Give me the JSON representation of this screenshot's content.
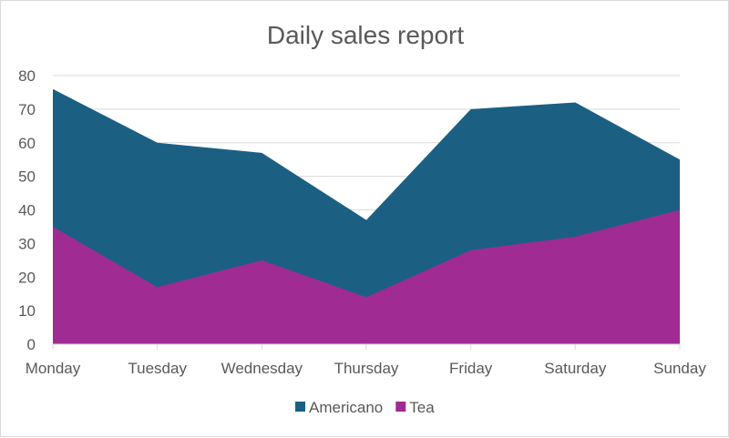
{
  "chart_data": {
    "type": "area",
    "stacked": false,
    "title": "Daily sales report",
    "categories": [
      "Monday",
      "Tuesday",
      "Wednesday",
      "Thursday",
      "Friday",
      "Saturday",
      "Sunday"
    ],
    "series": [
      {
        "name": "Americano",
        "color": "#1B6083",
        "values": [
          76,
          60,
          57,
          37,
          70,
          72,
          55
        ]
      },
      {
        "name": "Tea",
        "color": "#A02B93",
        "values": [
          35,
          17,
          25,
          14,
          28,
          32,
          40
        ]
      }
    ],
    "ylim": [
      0,
      80
    ],
    "yticks": [
      0,
      10,
      20,
      30,
      40,
      50,
      60,
      70,
      80
    ],
    "grid": true,
    "legend": "bottom"
  }
}
